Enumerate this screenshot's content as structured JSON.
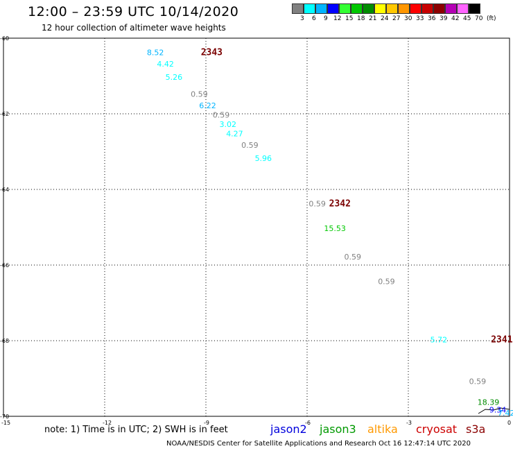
{
  "title": "12:00 – 23:59 UTC 10/14/2020",
  "subtitle": "12 hour collection of altimeter wave heights",
  "colorbar": {
    "swatches": [
      "#808080",
      "#00ffff",
      "#00b4ff",
      "#0000ff",
      "#33ff33",
      "#00c800",
      "#008c00",
      "#ffff00",
      "#ffc800",
      "#ff9600",
      "#ff0000",
      "#c80000",
      "#8c0000",
      "#b400b4",
      "#ff64ff",
      "#000000"
    ],
    "labels": [
      "3",
      "6",
      "9",
      "12",
      "15",
      "18",
      "21",
      "24",
      "27",
      "30",
      "33",
      "36",
      "39",
      "42",
      "45",
      "70",
      "(ft)"
    ]
  },
  "chart_data": {
    "type": "scatter",
    "title": "12:00 – 23:59 UTC 10/14/2020",
    "subtitle": "12 hour collection of altimeter wave heights",
    "xlim": [
      -15,
      0
    ],
    "ylim": [
      -70,
      -60
    ],
    "x_ticks": [
      "-15",
      "-12",
      "-9",
      "-6",
      "-3",
      "0"
    ],
    "y_ticks": [
      "-60",
      "-62",
      "-64",
      "-66",
      "-68",
      "-70"
    ],
    "grid": true,
    "points": [
      {
        "lon": -10.75,
        "lat": -60.45,
        "value": "8.52",
        "color": "#00b4ff"
      },
      {
        "lon": -10.45,
        "lat": -60.75,
        "value": "4.42",
        "color": "#00ffff"
      },
      {
        "lon": -10.2,
        "lat": -61.1,
        "value": "5.26",
        "color": "#00ffff"
      },
      {
        "lon": -9.45,
        "lat": -61.55,
        "value": "0.59",
        "color": "#808080"
      },
      {
        "lon": -9.2,
        "lat": -61.85,
        "value": "6.22",
        "color": "#00b4ff"
      },
      {
        "lon": -8.8,
        "lat": -62.1,
        "value": "0.59",
        "color": "#808080"
      },
      {
        "lon": -8.6,
        "lat": -62.35,
        "value": "3.02",
        "color": "#00ffff"
      },
      {
        "lon": -8.4,
        "lat": -62.6,
        "value": "4.27",
        "color": "#00ffff"
      },
      {
        "lon": -7.95,
        "lat": -62.9,
        "value": "0.59",
        "color": "#808080"
      },
      {
        "lon": -7.55,
        "lat": -63.25,
        "value": "5.96",
        "color": "#00ffff"
      },
      {
        "lon": -5.95,
        "lat": -64.45,
        "value": "0.59",
        "color": "#808080"
      },
      {
        "lon": -5.5,
        "lat": -65.1,
        "value": "15.53",
        "color": "#00c800"
      },
      {
        "lon": -4.9,
        "lat": -65.85,
        "value": "0.59",
        "color": "#808080"
      },
      {
        "lon": -3.9,
        "lat": -66.5,
        "value": "0.59",
        "color": "#808080"
      },
      {
        "lon": -2.35,
        "lat": -68.05,
        "value": "5.72",
        "color": "#00ffff"
      },
      {
        "lon": -1.2,
        "lat": -69.15,
        "value": "0.59",
        "color": "#808080"
      },
      {
        "lon": -0.95,
        "lat": -69.7,
        "value": "18.39",
        "color": "#008c00"
      },
      {
        "lon": -0.6,
        "lat": -69.9,
        "value": "9.34",
        "color": "#0000ff"
      },
      {
        "lon": -0.35,
        "lat": -69.98,
        "value": "7.42",
        "color": "#00b4ff"
      }
    ],
    "passes": [
      {
        "lon": -9.15,
        "lat": -60.45,
        "label": "2343"
      },
      {
        "lon": -5.35,
        "lat": -64.45,
        "label": "2342"
      },
      {
        "lon": -0.55,
        "lat": -68.05,
        "label": "2341"
      }
    ]
  },
  "note": "note: 1) Time is in UTC; 2) SWH is in feet",
  "satellites": [
    {
      "name": "jason2",
      "color": "#0000dd"
    },
    {
      "name": "jason3",
      "color": "#009900"
    },
    {
      "name": "altika",
      "color": "#ff9900"
    },
    {
      "name": "cryosat",
      "color": "#cc0000"
    },
    {
      "name": "s3a",
      "color": "#8b0000"
    }
  ],
  "credit": "NOAA/NESDIS Center for Satellite Applications and Research    Oct 16 12:47:14 UTC 2020"
}
